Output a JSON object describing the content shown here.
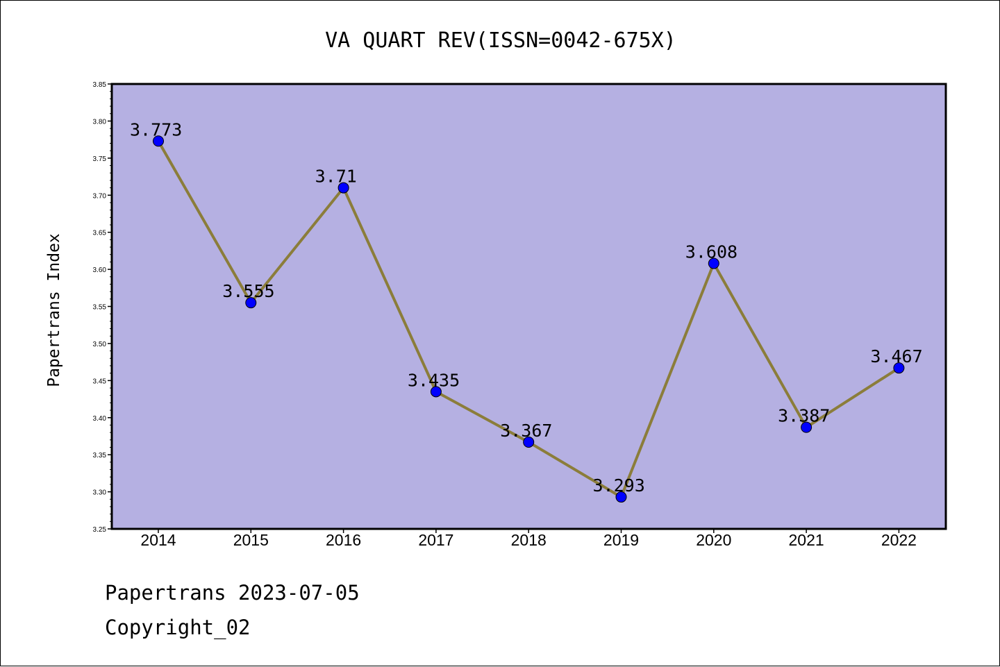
{
  "chart_data": {
    "type": "line",
    "title": "VA QUART REV(ISSN=0042-675X)",
    "xlabel": "",
    "ylabel": "Papertrans Index",
    "categories": [
      "2014",
      "2015",
      "2016",
      "2017",
      "2018",
      "2019",
      "2020",
      "2021",
      "2022"
    ],
    "values": [
      3.773,
      3.555,
      3.71,
      3.435,
      3.367,
      3.293,
      3.608,
      3.387,
      3.467
    ],
    "data_labels": [
      "3.773",
      "3.555",
      "3.71",
      "3.435",
      "3.367",
      "3.293",
      "3.608",
      "3.387",
      "3.467"
    ],
    "ylim": [
      3.25,
      3.85
    ],
    "yticks": [
      "3.25",
      "3.30",
      "3.35",
      "3.40",
      "3.45",
      "3.50",
      "3.55",
      "3.60",
      "3.65",
      "3.70",
      "3.75",
      "3.80",
      "3.85"
    ],
    "grid": false,
    "legend": "none",
    "colors": {
      "plot_background": "#b5b0e2",
      "line": "#8b7d3a",
      "marker": "#0000ff"
    }
  },
  "footer": {
    "date_text": "Papertrans 2023-07-05",
    "copyright_text": "Copyright_02"
  }
}
